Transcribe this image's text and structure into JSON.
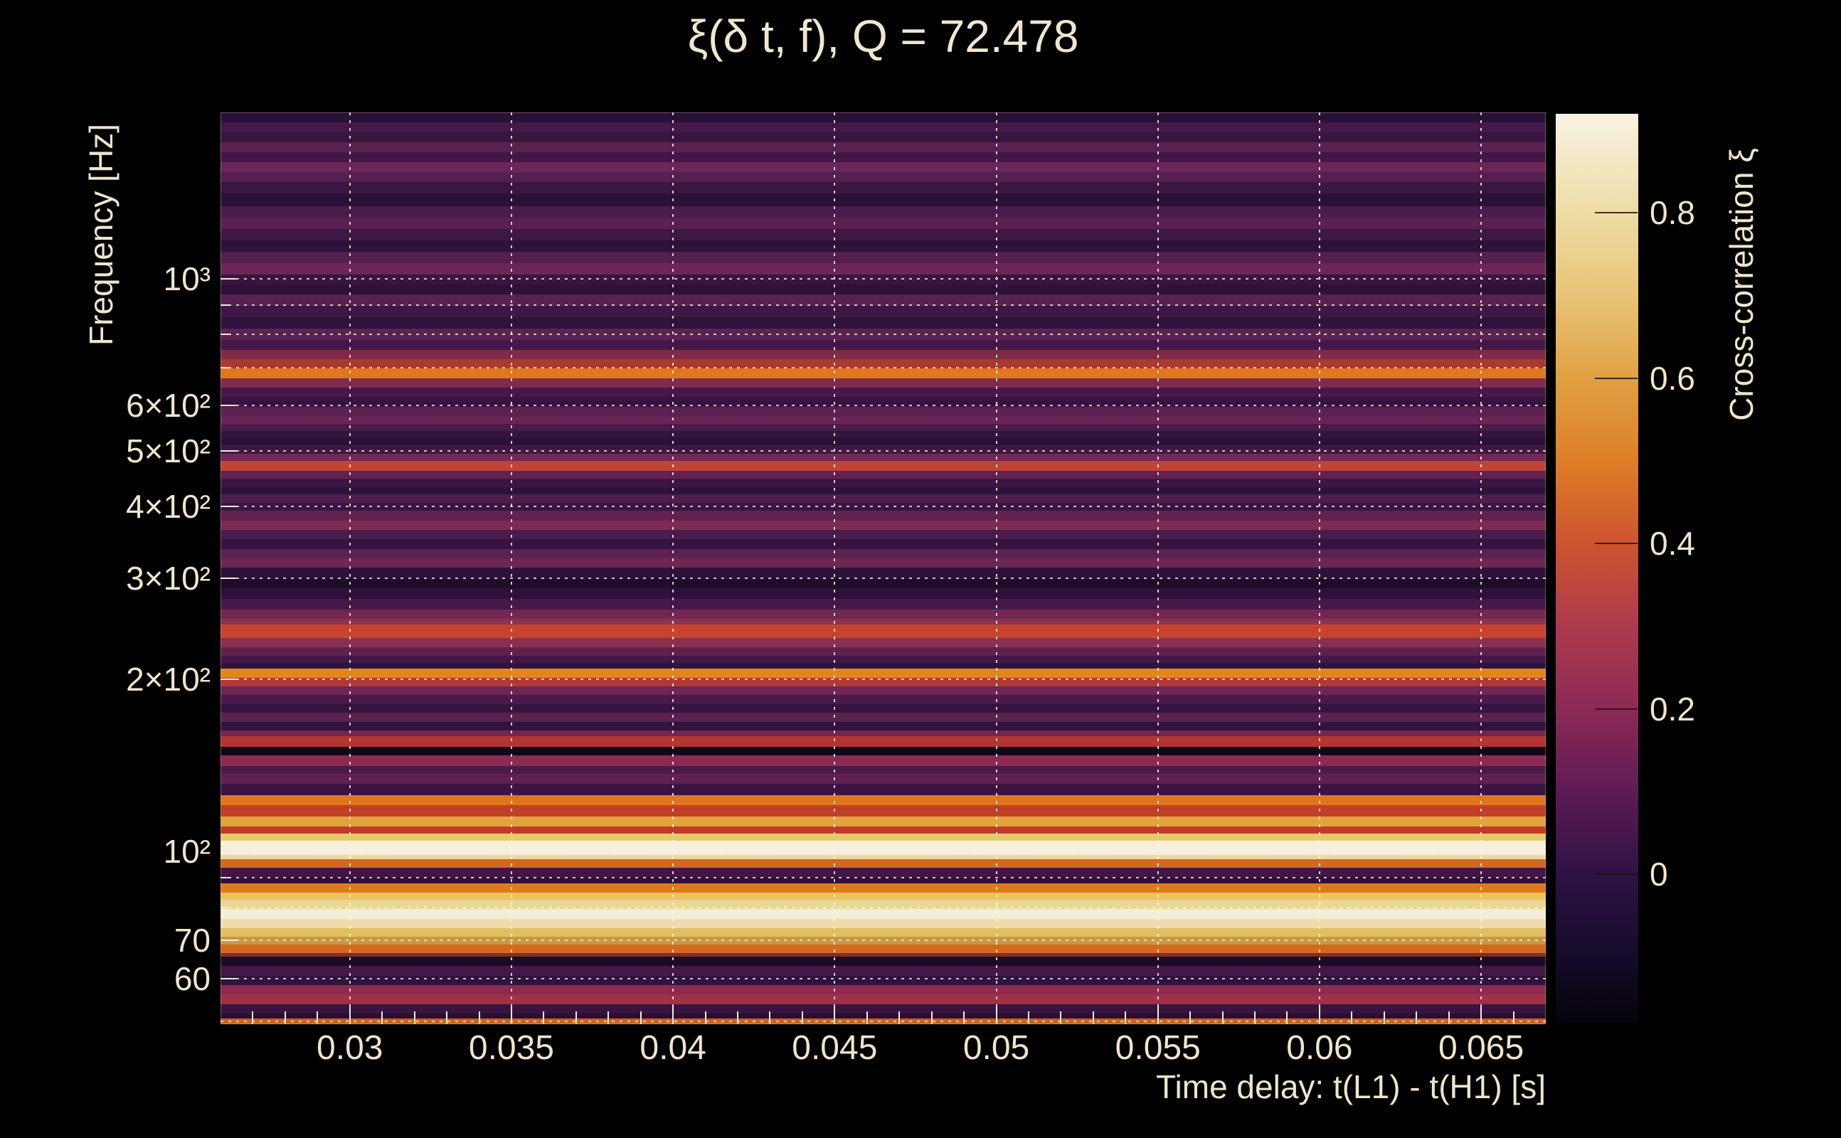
{
  "title": "ξ(δ t, f), Q = 72.478",
  "colors": {
    "background": "#000000",
    "text": "#efe5cc",
    "grid_dotted": "#faf4e4",
    "tick": "#f3ecd9",
    "bright_band": "#f5efdc",
    "orange_band": "#e0751f"
  },
  "axes": {
    "x": {
      "title": "Time delay: t(L1) - t(H1) [s]",
      "range_s": [
        0.026,
        0.067
      ],
      "tick_values": [
        0.03,
        0.035,
        0.04,
        0.045,
        0.05,
        0.055,
        0.06,
        0.065
      ],
      "tick_labels": [
        "0.03",
        "0.035",
        "0.04",
        "0.045",
        "0.05",
        "0.055",
        "0.06",
        "0.065"
      ],
      "minor_step_s": 0.001
    },
    "y": {
      "title": "Frequency [Hz]",
      "scale": "log",
      "range_hz": [
        50,
        1950
      ],
      "ticks": [
        {
          "label": "10³",
          "hz": 1000
        },
        {
          "label": "6×10²",
          "hz": 600
        },
        {
          "label": "5×10²",
          "hz": 500
        },
        {
          "label": "4×10²",
          "hz": 400
        },
        {
          "label": "3×10²",
          "hz": 300
        },
        {
          "label": "2×10²",
          "hz": 200
        },
        {
          "label": "10²",
          "hz": 100
        },
        {
          "label": "70",
          "hz": 70
        },
        {
          "label": "60",
          "hz": 60
        }
      ],
      "gridline_hz": [
        1000,
        900,
        800,
        700,
        600,
        500,
        400,
        300,
        200,
        100,
        90,
        80,
        70,
        60,
        50
      ]
    }
  },
  "colorbar": {
    "title": "Cross-correlation ξ",
    "tick_values": [
      0.8,
      0.6,
      0.4,
      0.2,
      0
    ],
    "tick_labels": [
      "0.8",
      "0.6",
      "0.4",
      "0.2",
      "0"
    ],
    "value_range": [
      -0.18,
      0.92
    ],
    "gradient": [
      {
        "v": 0.92,
        "c": "#f8f2e2"
      },
      {
        "v": 0.8,
        "c": "#eedca4"
      },
      {
        "v": 0.7,
        "c": "#e9c478"
      },
      {
        "v": 0.6,
        "c": "#e0a143"
      },
      {
        "v": 0.5,
        "c": "#dd7e27"
      },
      {
        "v": 0.4,
        "c": "#cd5430"
      },
      {
        "v": 0.3,
        "c": "#ad3a4e"
      },
      {
        "v": 0.2,
        "c": "#8c2a55"
      },
      {
        "v": 0.1,
        "c": "#5e1b55"
      },
      {
        "v": 0.0,
        "c": "#2e1245"
      },
      {
        "v": -0.1,
        "c": "#150b2a"
      },
      {
        "v": -0.18,
        "c": "#060309"
      }
    ]
  },
  "chart_data": {
    "type": "heatmap",
    "title": "ξ(δ t, f), Q = 72.478",
    "xlabel": "Time delay: t(L1) - t(H1) [s]",
    "ylabel": "Frequency [Hz]",
    "x_range_s": [
      0.026,
      0.067
    ],
    "y_scale": "log",
    "y_range_hz": [
      50,
      1950
    ],
    "colorbar_label": "Cross-correlation ξ",
    "colorbar_range": [
      -0.18,
      0.92
    ],
    "structure": "Cross-correlation is nearly constant in time delay; it varies with frequency as horizontal bands.",
    "notable_bands": [
      {
        "freq_hz": 685,
        "xi": 0.58
      },
      {
        "freq_hz": 473,
        "xi": 0.42
      },
      {
        "freq_hz": 244,
        "xi": 0.45
      },
      {
        "freq_hz": 206,
        "xi": 0.62
      },
      {
        "freq_hz": 156,
        "xi": 0.38
      },
      {
        "freq_hz": 150,
        "xi": -0.12
      },
      {
        "freq_hz": 124,
        "xi": 0.58
      },
      {
        "freq_hz": 114,
        "xi": 0.68
      },
      {
        "freq_hz": 102,
        "xi": 0.88
      },
      {
        "freq_hz": 87,
        "xi": 0.6
      },
      {
        "freq_hz": 79,
        "xi": 0.88
      },
      {
        "freq_hz": 75,
        "xi": 0.78
      },
      {
        "freq_hz": 68,
        "xi": 0.55
      },
      {
        "freq_hz": 58,
        "xi": 0.32
      },
      {
        "freq_hz": 50,
        "xi": 0.57
      }
    ],
    "stripes_note": "Vertical profile of the map sampled top(158px)->bottom(1440px) of the original screenshot; each entry = [end_y_px, color, approx_xi].",
    "stripes": [
      [
        172,
        "#2a1138",
        0.02
      ],
      [
        186,
        "#441848",
        0.08
      ],
      [
        200,
        "#38153f",
        0.05
      ],
      [
        214,
        "#5a2150",
        0.14
      ],
      [
        228,
        "#421747",
        0.07
      ],
      [
        242,
        "#6a2656",
        0.2
      ],
      [
        256,
        "#542050",
        0.12
      ],
      [
        272,
        "#3b1640",
        0.05
      ],
      [
        290,
        "#2c1137",
        0.01
      ],
      [
        306,
        "#4b1b4b",
        0.1
      ],
      [
        322,
        "#582150",
        0.13
      ],
      [
        338,
        "#3e1743",
        0.06
      ],
      [
        354,
        "#2d1239",
        0.02
      ],
      [
        370,
        "#521f4e",
        0.12
      ],
      [
        386,
        "#6b2655",
        0.2
      ],
      [
        400,
        "#3a1540",
        0.05
      ],
      [
        414,
        "#2d1138",
        0.02
      ],
      [
        430,
        "#572150",
        0.13
      ],
      [
        446,
        "#3f1745",
        0.06
      ],
      [
        462,
        "#2f133c",
        0.03
      ],
      [
        478,
        "#5c2252",
        0.15
      ],
      [
        492,
        "#431848",
        0.08
      ],
      [
        505,
        "#7e2b4a",
        0.26
      ],
      [
        518,
        "#aa3a2e",
        0.37
      ],
      [
        532,
        "#e0761e",
        0.58
      ],
      [
        545,
        "#7e2b4d",
        0.25
      ],
      [
        558,
        "#46184a",
        0.08
      ],
      [
        572,
        "#341440",
        0.04
      ],
      [
        586,
        "#5b2150",
        0.14
      ],
      [
        596,
        "#6b2455",
        0.2
      ],
      [
        606,
        "#4a1a4b",
        0.1
      ],
      [
        616,
        "#35143f",
        0.04
      ],
      [
        626,
        "#2a1136",
        0.01
      ],
      [
        638,
        "#3f1745",
        0.06
      ],
      [
        648,
        "#722853",
        0.22
      ],
      [
        662,
        "#c04434",
        0.42
      ],
      [
        673,
        "#61224f",
        0.17
      ],
      [
        685,
        "#3c1643",
        0.05
      ],
      [
        695,
        "#2e123a",
        0.02
      ],
      [
        707,
        "#4f1e4d",
        0.11
      ],
      [
        718,
        "#3a1642",
        0.05
      ],
      [
        732,
        "#5f2251",
        0.16
      ],
      [
        745,
        "#7e2a52",
        0.25
      ],
      [
        758,
        "#4b1b4b",
        0.1
      ],
      [
        772,
        "#341440",
        0.04
      ],
      [
        785,
        "#5c2150",
        0.15
      ],
      [
        798,
        "#6d2754",
        0.21
      ],
      [
        813,
        "#2f1239",
        0.03
      ],
      [
        827,
        "#1f0c2b",
        -0.04
      ],
      [
        842,
        "#2d113a",
        0.02
      ],
      [
        857,
        "#451849",
        0.08
      ],
      [
        870,
        "#712752",
        0.22
      ],
      [
        878,
        "#8c3350",
        0.29
      ],
      [
        897,
        "#c8432d",
        0.45
      ],
      [
        910,
        "#8c2f4e",
        0.28
      ],
      [
        922,
        "#5e2150",
        0.15
      ],
      [
        932,
        "#431747",
        0.07
      ],
      [
        940,
        "#30133c",
        0.03
      ],
      [
        953,
        "#e2861c",
        0.62
      ],
      [
        965,
        "#b03a33",
        0.38
      ],
      [
        977,
        "#6f2652",
        0.21
      ],
      [
        990,
        "#491a4a",
        0.09
      ],
      [
        1002,
        "#351440",
        0.04
      ],
      [
        1015,
        "#5a2150",
        0.14
      ],
      [
        1027,
        "#31143d",
        0.03
      ],
      [
        1035,
        "#72264f",
        0.22
      ],
      [
        1050,
        "#b23433",
        0.38
      ],
      [
        1062,
        "#120716",
        -0.12
      ],
      [
        1077,
        "#8c2a55",
        0.28
      ],
      [
        1088,
        "#4b1a4b",
        0.1
      ],
      [
        1102,
        "#5e2150",
        0.15
      ],
      [
        1118,
        "#3a1543",
        0.05
      ],
      [
        1132,
        "#e0751f",
        0.58
      ],
      [
        1148,
        "#c14028",
        0.43
      ],
      [
        1162,
        "#e3a33c",
        0.68
      ],
      [
        1172,
        "#c23b28",
        0.43
      ],
      [
        1182,
        "#e8c96a",
        0.75
      ],
      [
        1202,
        "#f5efdc",
        0.88
      ],
      [
        1208,
        "#edd9a0",
        0.8
      ],
      [
        1220,
        "#d2691e",
        0.55
      ],
      [
        1233,
        "#441646",
        0.07
      ],
      [
        1242,
        "#30113c",
        0.03
      ],
      [
        1255,
        "#e07a1a",
        0.6
      ],
      [
        1265,
        "#ecc45c",
        0.73
      ],
      [
        1278,
        "#e8d898",
        0.8
      ],
      [
        1292,
        "#f4eed8",
        0.88
      ],
      [
        1305,
        "#eedcae",
        0.82
      ],
      [
        1317,
        "#e0be62",
        0.72
      ],
      [
        1328,
        "#c89a40",
        0.65
      ],
      [
        1340,
        "#d2691e",
        0.55
      ],
      [
        1345,
        "#7e3030",
        0.3
      ],
      [
        1358,
        "#1c0a26",
        -0.06
      ],
      [
        1372,
        "#451747",
        0.08
      ],
      [
        1385,
        "#30133e",
        0.03
      ],
      [
        1398,
        "#8c2a50",
        0.28
      ],
      [
        1412,
        "#a03148",
        0.33
      ],
      [
        1425,
        "#3a1440",
        0.05
      ],
      [
        1432,
        "#2a0f33",
        0.01
      ],
      [
        1440,
        "#d2601b",
        0.57
      ]
    ]
  }
}
